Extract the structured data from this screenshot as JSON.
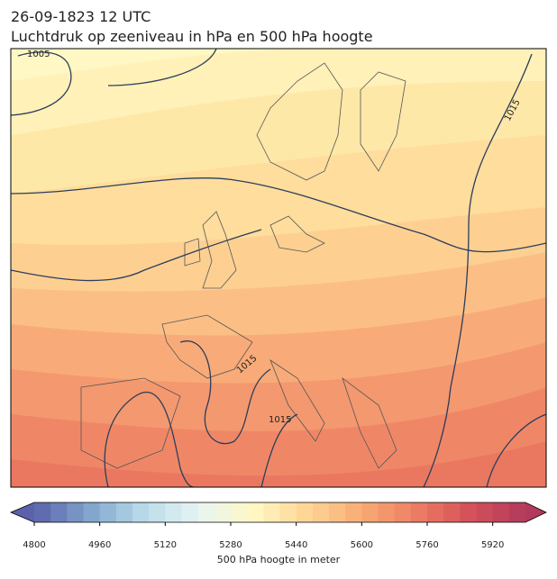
{
  "header": {
    "date": "26-09-1823 12 UTC",
    "title": "Luchtdruk op zeeniveau in hPa en 500 hPa hoogte"
  },
  "map": {
    "contour_labels": [
      "1005",
      "1015",
      "1015",
      "1015"
    ]
  },
  "colorbar": {
    "label": "500 hPa hoogte in meter",
    "range": [
      4800,
      6000
    ],
    "step": 40,
    "ticks": [
      4800,
      4960,
      5120,
      5280,
      5440,
      5600,
      5760,
      5920
    ],
    "colormap": [
      "#5b62ab",
      "#7fa3cc",
      "#b9dbea",
      "#e6f4f3",
      "#fff8c4",
      "#fed595",
      "#f8ab74",
      "#ec7d62",
      "#d5505a",
      "#b23a5c"
    ],
    "extend": "both"
  }
}
